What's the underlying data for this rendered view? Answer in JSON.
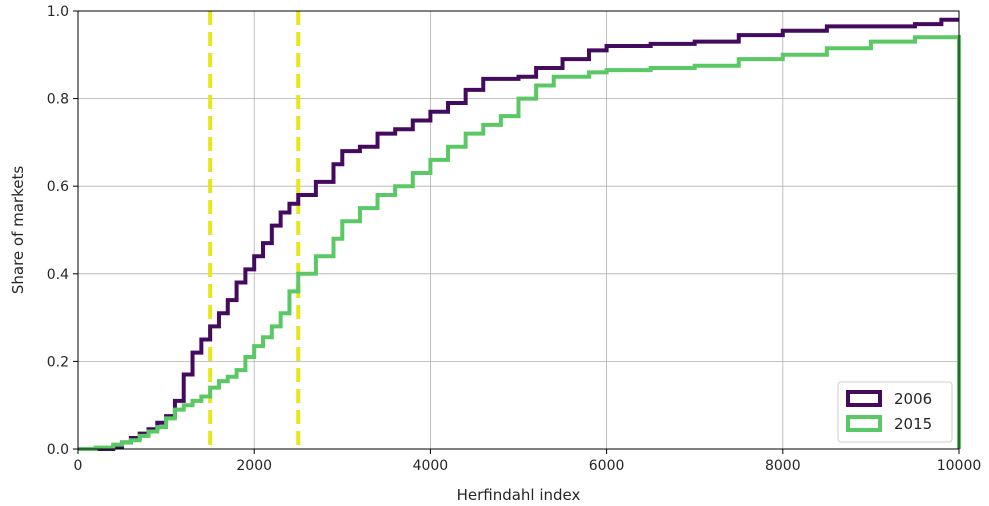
{
  "chart_data": {
    "type": "line",
    "title": "",
    "xlabel": "Herfindahl index",
    "ylabel": "Share of markets",
    "xlim": [
      0,
      10000
    ],
    "ylim": [
      0,
      1.0
    ],
    "xticks": [
      0,
      2000,
      4000,
      6000,
      8000,
      10000
    ],
    "xtick_labels": [
      "0",
      "2000",
      "4000",
      "6000",
      "8000",
      "10000"
    ],
    "yticks": [
      0.0,
      0.2,
      0.4,
      0.6,
      0.8,
      1.0
    ],
    "ytick_labels": [
      "0.0",
      "0.2",
      "0.4",
      "0.6",
      "0.8",
      "1.0"
    ],
    "grid": true,
    "legend_position": "bottom-right",
    "reference_lines": [
      {
        "x": 1500,
        "color": "#e6e619",
        "style": "dashed"
      },
      {
        "x": 2500,
        "color": "#e6e619",
        "style": "dashed"
      }
    ],
    "series": [
      {
        "name": "2006",
        "color": "#440a5e",
        "points": [
          [
            0,
            0.0
          ],
          [
            300,
            0.0
          ],
          [
            400,
            0.005
          ],
          [
            500,
            0.015
          ],
          [
            600,
            0.025
          ],
          [
            700,
            0.035
          ],
          [
            800,
            0.045
          ],
          [
            900,
            0.06
          ],
          [
            1000,
            0.075
          ],
          [
            1100,
            0.11
          ],
          [
            1200,
            0.17
          ],
          [
            1300,
            0.22
          ],
          [
            1400,
            0.25
          ],
          [
            1500,
            0.28
          ],
          [
            1600,
            0.31
          ],
          [
            1700,
            0.34
          ],
          [
            1800,
            0.38
          ],
          [
            1900,
            0.41
          ],
          [
            2000,
            0.44
          ],
          [
            2100,
            0.47
          ],
          [
            2200,
            0.51
          ],
          [
            2300,
            0.54
          ],
          [
            2400,
            0.56
          ],
          [
            2500,
            0.58
          ],
          [
            2700,
            0.61
          ],
          [
            2900,
            0.65
          ],
          [
            3000,
            0.68
          ],
          [
            3200,
            0.69
          ],
          [
            3400,
            0.72
          ],
          [
            3600,
            0.73
          ],
          [
            3800,
            0.75
          ],
          [
            4000,
            0.77
          ],
          [
            4200,
            0.79
          ],
          [
            4400,
            0.82
          ],
          [
            4600,
            0.845
          ],
          [
            5000,
            0.85
          ],
          [
            5200,
            0.87
          ],
          [
            5500,
            0.89
          ],
          [
            5800,
            0.91
          ],
          [
            6000,
            0.92
          ],
          [
            6500,
            0.925
          ],
          [
            7000,
            0.93
          ],
          [
            7500,
            0.945
          ],
          [
            8000,
            0.955
          ],
          [
            8500,
            0.965
          ],
          [
            9000,
            0.965
          ],
          [
            9500,
            0.97
          ],
          [
            9800,
            0.98
          ],
          [
            10000,
            0.98
          ]
        ]
      },
      {
        "name": "2015",
        "color": "#5ac864",
        "points": [
          [
            0,
            0.0
          ],
          [
            200,
            0.003
          ],
          [
            400,
            0.01
          ],
          [
            500,
            0.015
          ],
          [
            600,
            0.02
          ],
          [
            700,
            0.03
          ],
          [
            800,
            0.04
          ],
          [
            900,
            0.05
          ],
          [
            1000,
            0.07
          ],
          [
            1100,
            0.09
          ],
          [
            1200,
            0.1
          ],
          [
            1300,
            0.11
          ],
          [
            1400,
            0.12
          ],
          [
            1500,
            0.14
          ],
          [
            1600,
            0.155
          ],
          [
            1700,
            0.165
          ],
          [
            1800,
            0.18
          ],
          [
            1900,
            0.21
          ],
          [
            2000,
            0.235
          ],
          [
            2100,
            0.255
          ],
          [
            2200,
            0.28
          ],
          [
            2300,
            0.31
          ],
          [
            2400,
            0.36
          ],
          [
            2500,
            0.4
          ],
          [
            2700,
            0.44
          ],
          [
            2900,
            0.48
          ],
          [
            3000,
            0.52
          ],
          [
            3200,
            0.55
          ],
          [
            3400,
            0.58
          ],
          [
            3600,
            0.6
          ],
          [
            3800,
            0.63
          ],
          [
            4000,
            0.66
          ],
          [
            4200,
            0.69
          ],
          [
            4400,
            0.72
          ],
          [
            4600,
            0.74
          ],
          [
            4800,
            0.76
          ],
          [
            5000,
            0.8
          ],
          [
            5200,
            0.83
          ],
          [
            5400,
            0.85
          ],
          [
            5800,
            0.86
          ],
          [
            6000,
            0.865
          ],
          [
            6500,
            0.87
          ],
          [
            7000,
            0.875
          ],
          [
            7500,
            0.89
          ],
          [
            8000,
            0.9
          ],
          [
            8500,
            0.915
          ],
          [
            9000,
            0.93
          ],
          [
            9500,
            0.94
          ],
          [
            10000,
            0.945
          ]
        ]
      }
    ]
  }
}
